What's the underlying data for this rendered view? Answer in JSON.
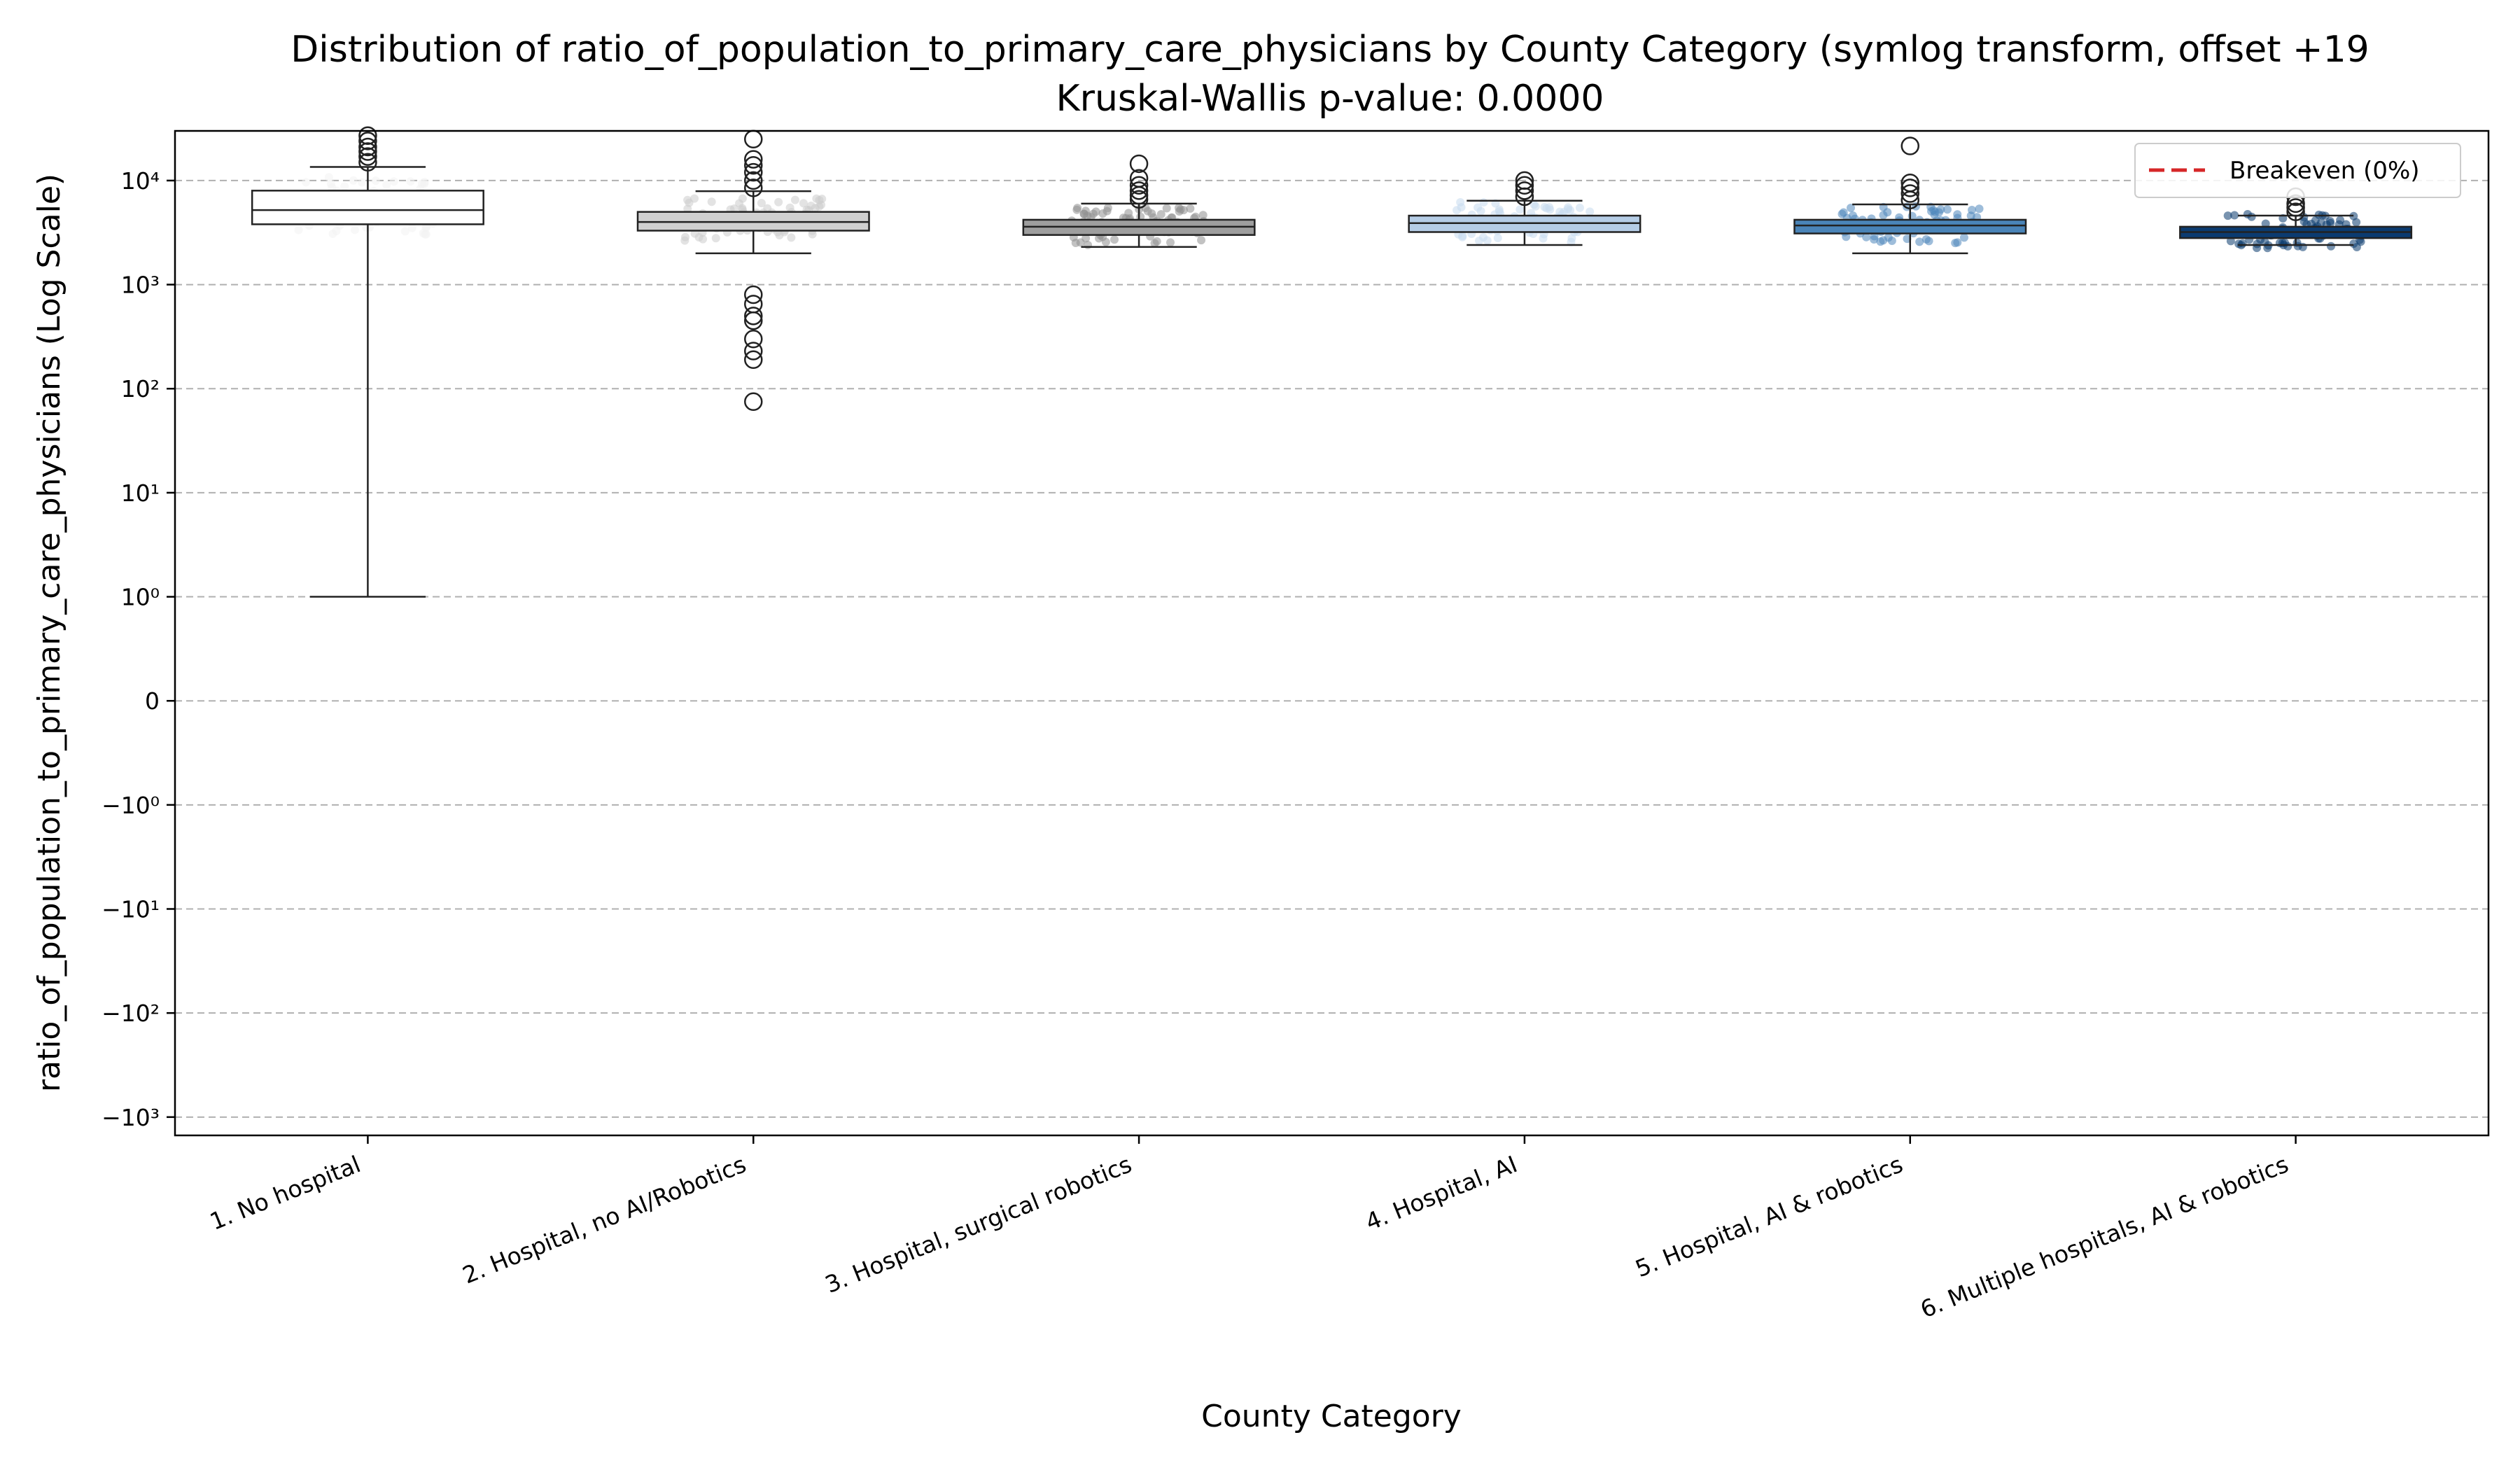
{
  "chart_data": {
    "type": "box",
    "title": "Distribution of ratio_of_population_to_primary_care_physicians by County Category (symlog transform, offset +19",
    "subtitle": "Kruskal-Wallis p-value: 0.0000",
    "xlabel": "County Category",
    "ylabel": "ratio_of_population_to_primary_care_physicians (Log Scale)",
    "yscale": "symlog",
    "ylim": [
      -1500,
      30000
    ],
    "y_tick_labels": [
      {
        "value": -1000,
        "label": "−10³"
      },
      {
        "value": -100,
        "label": "−10²"
      },
      {
        "value": -10,
        "label": "−10¹"
      },
      {
        "value": -1,
        "label": "−10⁰"
      },
      {
        "value": 0,
        "label": "0"
      },
      {
        "value": 1,
        "label": "10⁰"
      },
      {
        "value": 10,
        "label": "10¹"
      },
      {
        "value": 100,
        "label": "10²"
      },
      {
        "value": 1000,
        "label": "10³"
      },
      {
        "value": 10000,
        "label": "10⁴"
      }
    ],
    "grid": "y",
    "legend": {
      "placement": "top-right",
      "entries": [
        {
          "label": "Breakeven (0%)",
          "color": "#d62728",
          "style": "dashed"
        }
      ]
    },
    "categories": [
      {
        "label": "1. No hospital",
        "color": "#ffffff",
        "point_color": "#f2f2f2",
        "whisker_low": 1,
        "q1": 3800,
        "median": 5200,
        "q3": 8000,
        "whisker_high": 13500,
        "outliers": [
          15000,
          17000,
          19000,
          21000,
          24000,
          27000
        ]
      },
      {
        "label": "2. Hospital, no AI/Robotics",
        "color": "#d0d0d0",
        "point_color": "#cccccc",
        "whisker_low": 2000,
        "q1": 3300,
        "median": 4000,
        "q3": 5000,
        "whisker_high": 7900,
        "outliers": [
          75,
          190,
          230,
          300,
          450,
          500,
          650,
          800,
          8500,
          10000,
          12000,
          14000,
          16000,
          25000
        ]
      },
      {
        "label": "3. Hospital, surgical robotics",
        "color": "#9e9e9e",
        "point_color": "#8f8f8f",
        "whisker_low": 2300,
        "q1": 3000,
        "median": 3600,
        "q3": 4200,
        "whisker_high": 6000,
        "outliers": [
          6600,
          7200,
          8000,
          9000,
          10500,
          14500
        ]
      },
      {
        "label": "4. Hospital, AI",
        "color": "#b5cde6",
        "point_color": "#c6dbef",
        "whisker_low": 2400,
        "q1": 3200,
        "median": 3900,
        "q3": 4600,
        "whisker_high": 6400,
        "outliers": [
          7000,
          8000,
          9000,
          10000
        ]
      },
      {
        "label": "5. Hospital, AI & robotics",
        "color": "#4a84b8",
        "point_color": "#4f86bb",
        "whisker_low": 2000,
        "q1": 3100,
        "median": 3700,
        "q3": 4200,
        "whisker_high": 5900,
        "outliers": [
          6500,
          7500,
          8500,
          9500,
          21500
        ]
      },
      {
        "label": "6. Multiple hospitals, AI & robotics",
        "color": "#0b3b70",
        "point_color": "#0a3a6e",
        "whisker_low": 2400,
        "q1": 2800,
        "median": 3200,
        "q3": 3600,
        "whisker_high": 4600,
        "outliers": [
          5000,
          5500,
          6000,
          7000
        ]
      }
    ]
  }
}
